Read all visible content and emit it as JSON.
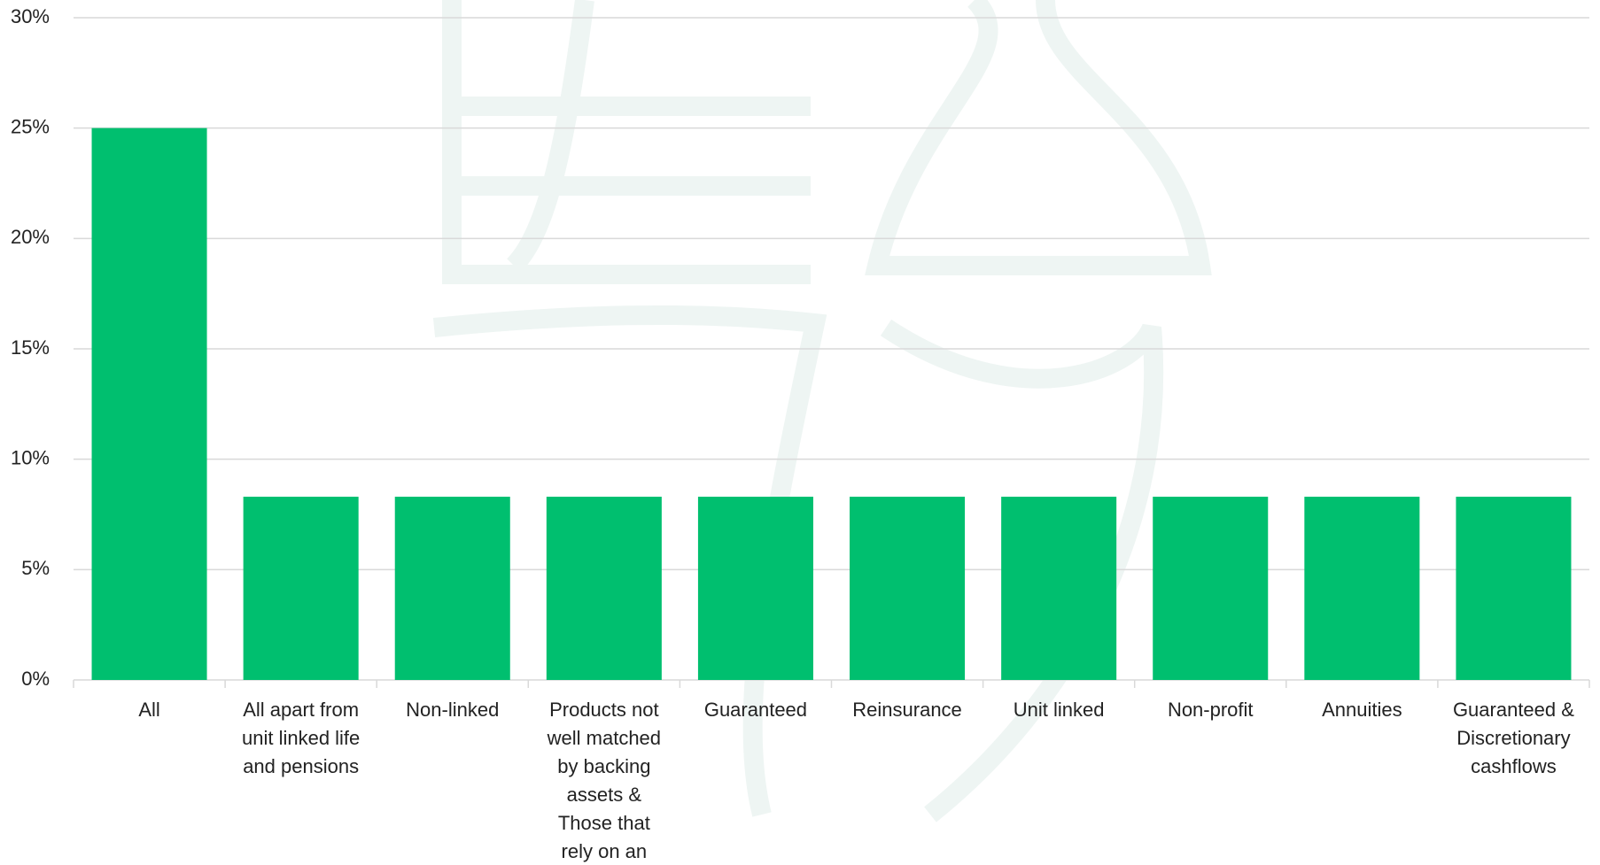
{
  "chart_data": {
    "type": "bar",
    "categories": [
      "All",
      "All apart from unit linked life and pensions",
      "Non-linked",
      "Products not well matched by backing assets & Those that rely on an ESG",
      "Guaranteed",
      "Reinsurance",
      "Unit linked",
      "Non-profit",
      "Annuities",
      "Guaranteed & Discretionary cashflows"
    ],
    "values": [
      25,
      8.3,
      8.3,
      8.3,
      8.3,
      8.3,
      8.3,
      8.3,
      8.3,
      8.3
    ],
    "color": "#00bf6f",
    "ylim": [
      0,
      30
    ],
    "yticks": [
      {
        "value": 0,
        "label": "0%"
      },
      {
        "value": 5,
        "label": "5%"
      },
      {
        "value": 10,
        "label": "10%"
      },
      {
        "value": 15,
        "label": "15%"
      },
      {
        "value": 20,
        "label": "20%"
      },
      {
        "value": 25,
        "label": "25%"
      },
      {
        "value": 30,
        "label": "30%"
      }
    ],
    "grid": true
  }
}
